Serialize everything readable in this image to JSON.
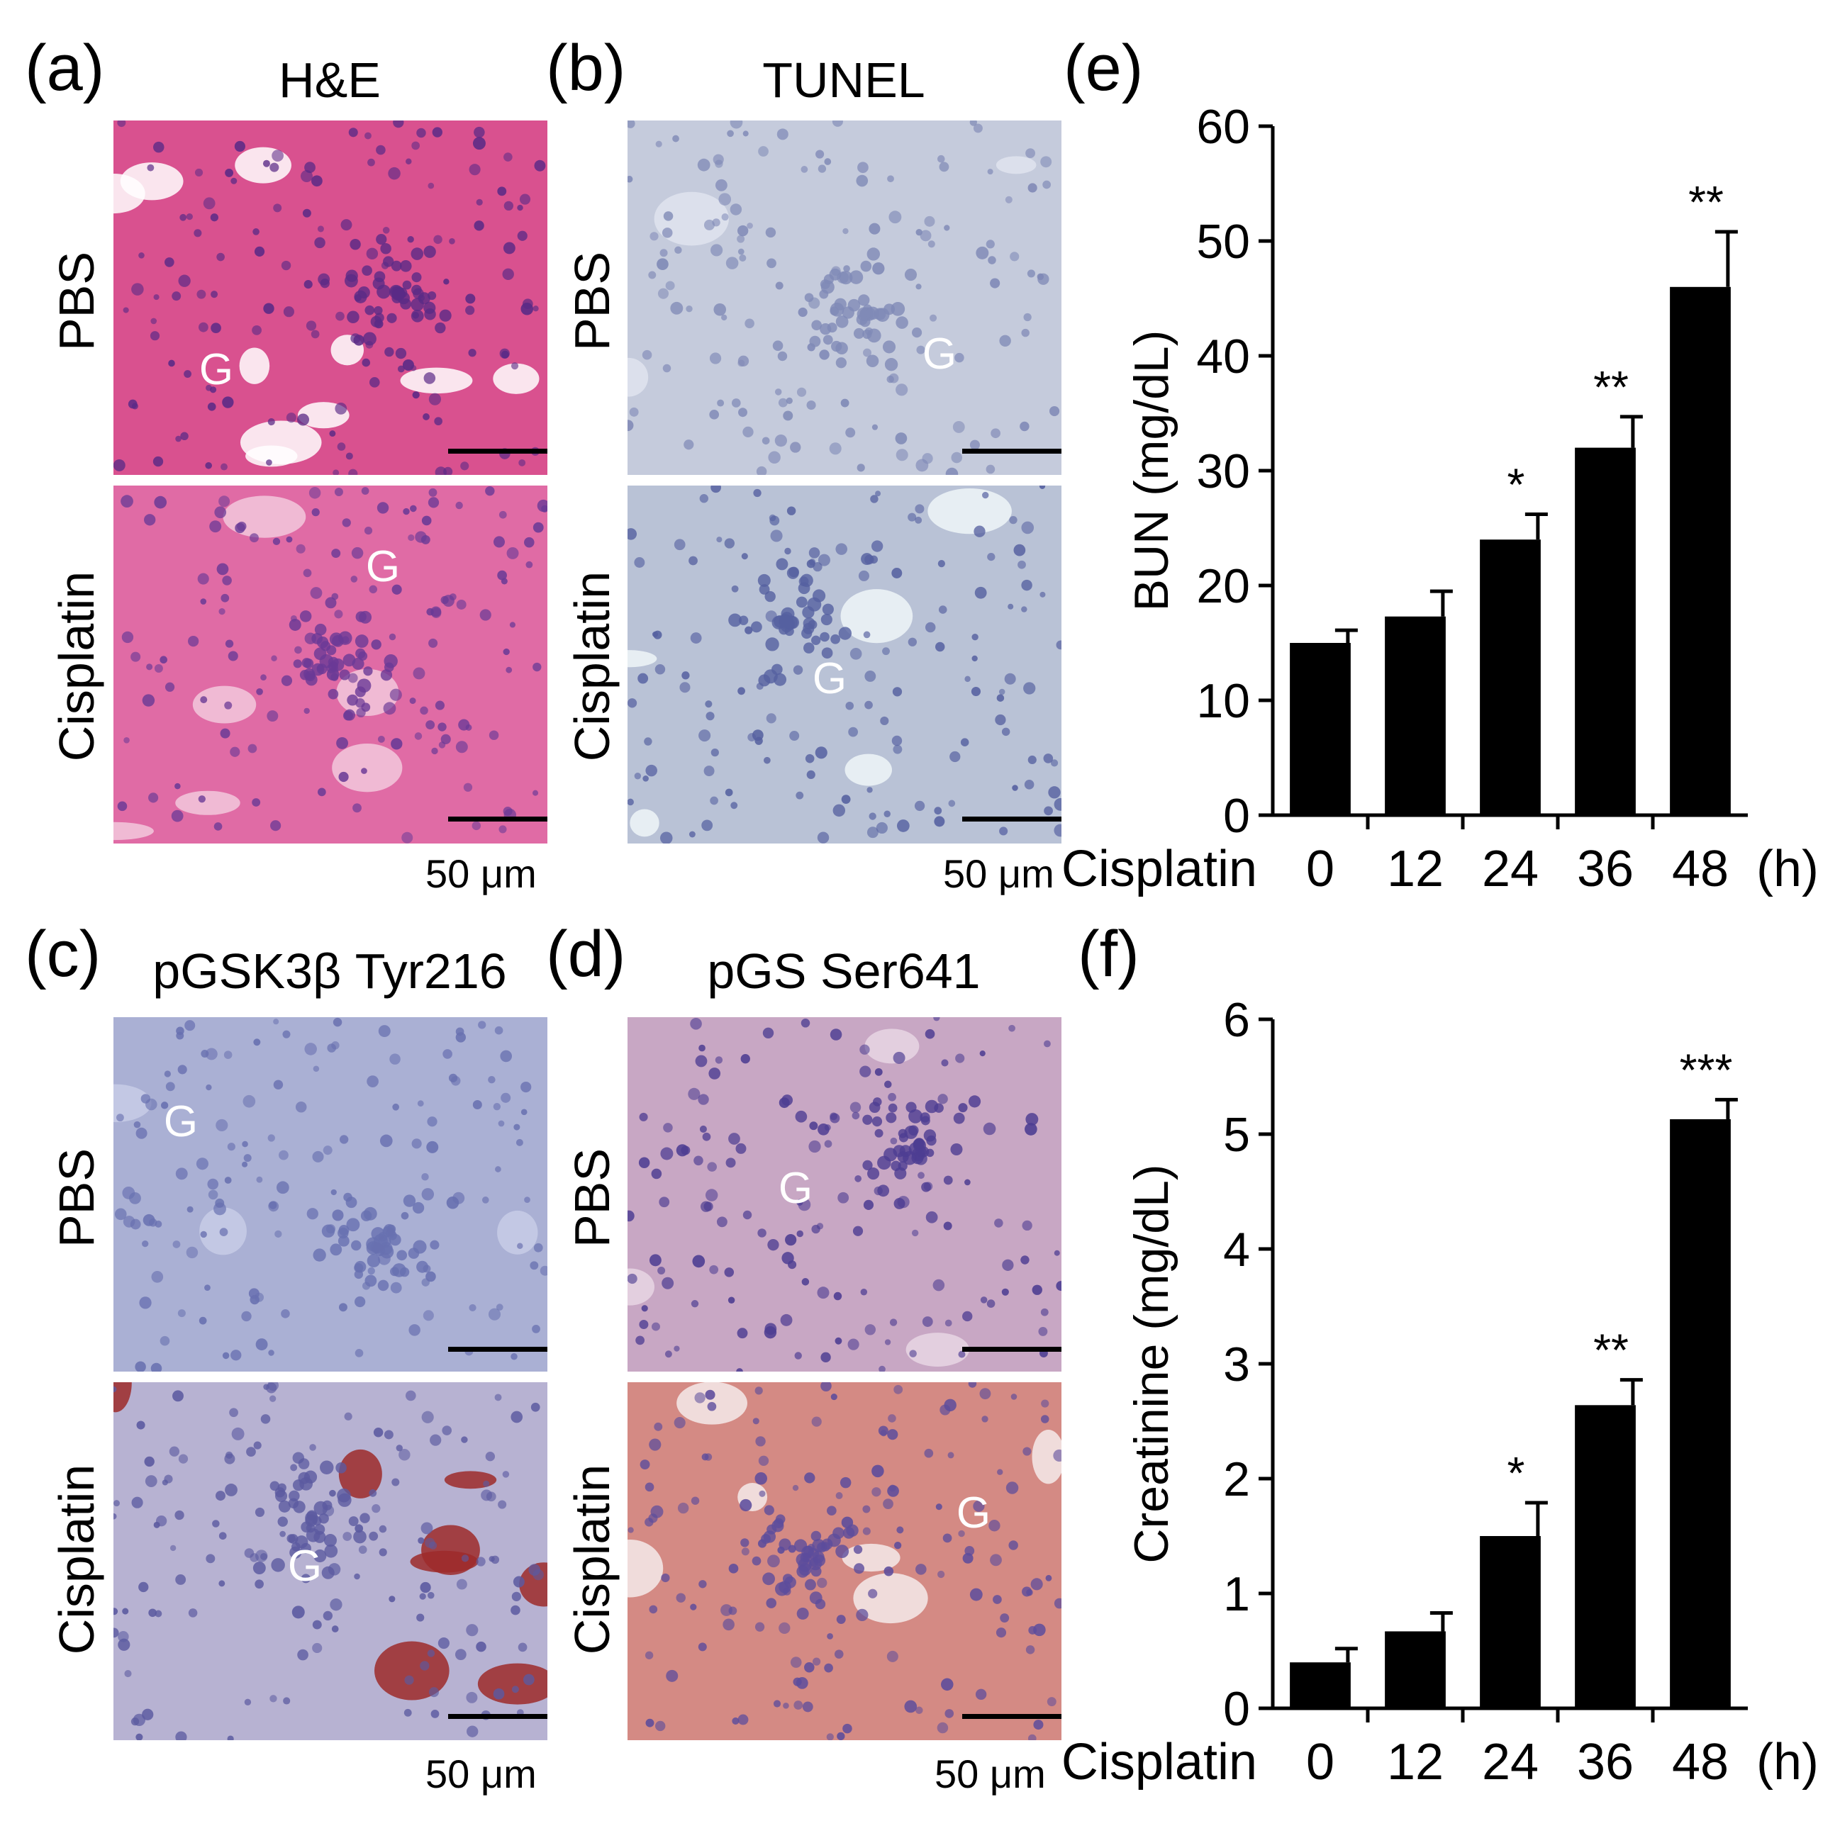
{
  "panels": {
    "a": {
      "letter": "(a)",
      "stain": "H&E"
    },
    "b": {
      "letter": "(b)",
      "stain": "TUNEL"
    },
    "c": {
      "letter": "(c)",
      "stain": "pGSK3β Tyr216"
    },
    "d": {
      "letter": "(d)",
      "stain": "pGS Ser641"
    },
    "e": {
      "letter": "(e)"
    },
    "f": {
      "letter": "(f)"
    }
  },
  "row_labels": {
    "pbs": "PBS",
    "cisplatin": "Cisplatin"
  },
  "glomerulus_label": "G",
  "scale_bar_label": "50 μm",
  "colors": {
    "he_pbs": "#d9518f",
    "he_cis": "#e06ba5",
    "tunel_pbs": "#c5cbdc",
    "tunel_cis": "#b9c2d6",
    "gsk_pbs": "#aab0d4",
    "gsk_cis": "#b7b2d2",
    "gs_pbs": "#c8a7c4",
    "gs_cis": "#d48a84",
    "bar": "#000000"
  },
  "chart_data": [
    {
      "type": "bar",
      "panel": "(e)",
      "xlabel": "Cisplatin",
      "x_unit": "(h)",
      "categories": [
        "0",
        "12",
        "24",
        "36",
        "48"
      ],
      "values": [
        15,
        17.3,
        24,
        32,
        46
      ],
      "errors": [
        1.1,
        2.2,
        2.2,
        2.7,
        4.8
      ],
      "significance": [
        "",
        "",
        "*",
        "**",
        "**"
      ],
      "ylabel": "BUN (mg/dL)",
      "ylim": [
        0,
        60
      ],
      "yticks": [
        "0",
        "10",
        "20",
        "30",
        "40",
        "50",
        "60"
      ]
    },
    {
      "type": "bar",
      "panel": "(f)",
      "xlabel": "Cisplatin",
      "x_unit": "(h)",
      "categories": [
        "0",
        "12",
        "24",
        "36",
        "48"
      ],
      "values": [
        0.4,
        0.67,
        1.5,
        2.64,
        5.13
      ],
      "errors": [
        0.12,
        0.16,
        0.29,
        0.22,
        0.17
      ],
      "significance": [
        "",
        "",
        "*",
        "**",
        "***"
      ],
      "ylabel": "Creatinine (mg/dL)",
      "ylim": [
        0,
        6
      ],
      "yticks": [
        "0",
        "1",
        "2",
        "3",
        "4",
        "5",
        "6"
      ]
    }
  ]
}
